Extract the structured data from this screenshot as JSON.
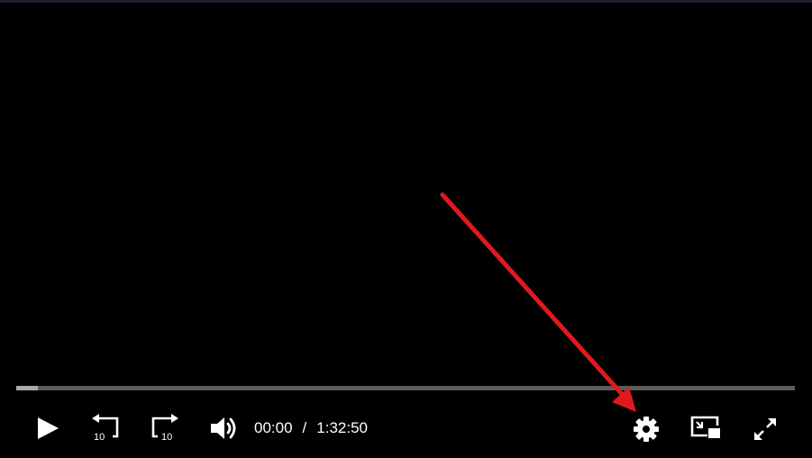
{
  "player": {
    "current_time": "00:00",
    "separator": "/",
    "duration": "1:32:50",
    "buffered_fraction": 0.028,
    "colors": {
      "background": "#000000",
      "track": "#5a5a5a",
      "buffered": "#a9a9a9",
      "icons": "#ffffff",
      "annotation_arrow": "#e0191f"
    },
    "controls": {
      "play": {
        "icon": "play-icon"
      },
      "rewind": {
        "icon": "rewind-10-icon",
        "label": "10"
      },
      "forward": {
        "icon": "forward-10-icon",
        "label": "10"
      },
      "volume": {
        "icon": "volume-icon"
      },
      "settings": {
        "icon": "gear-icon"
      },
      "pip": {
        "icon": "picture-in-picture-icon"
      },
      "fullscreen": {
        "icon": "fullscreen-icon"
      }
    }
  }
}
